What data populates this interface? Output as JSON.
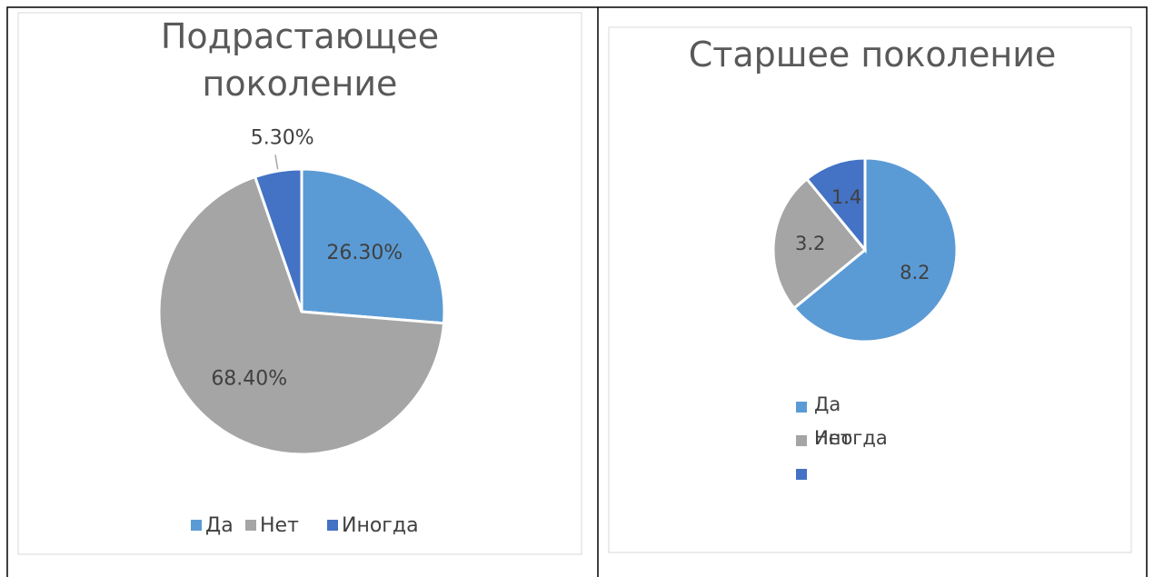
{
  "charts": [
    {
      "chart_data": {
        "type": "pie",
        "title": "Подрастающее поколение",
        "categories": [
          "Да",
          "Нет",
          "Иногда"
        ],
        "values": [
          26.3,
          68.4,
          5.3
        ],
        "value_labels": [
          "26.30%",
          "68.40%",
          "5.30%"
        ],
        "colors": [
          "#5b9bd5",
          "#a5a5a5",
          "#4472c4"
        ],
        "legend": "bottom"
      }
    },
    {
      "chart_data": {
        "type": "pie",
        "title": "Старшее поколение",
        "categories": [
          "Да",
          "Нет",
          "Иногда"
        ],
        "values": [
          8.2,
          3.2,
          1.4
        ],
        "colors": [
          "#5b9bd5",
          "#a5a5a5",
          "#4472c4"
        ],
        "legend": "left"
      }
    }
  ]
}
